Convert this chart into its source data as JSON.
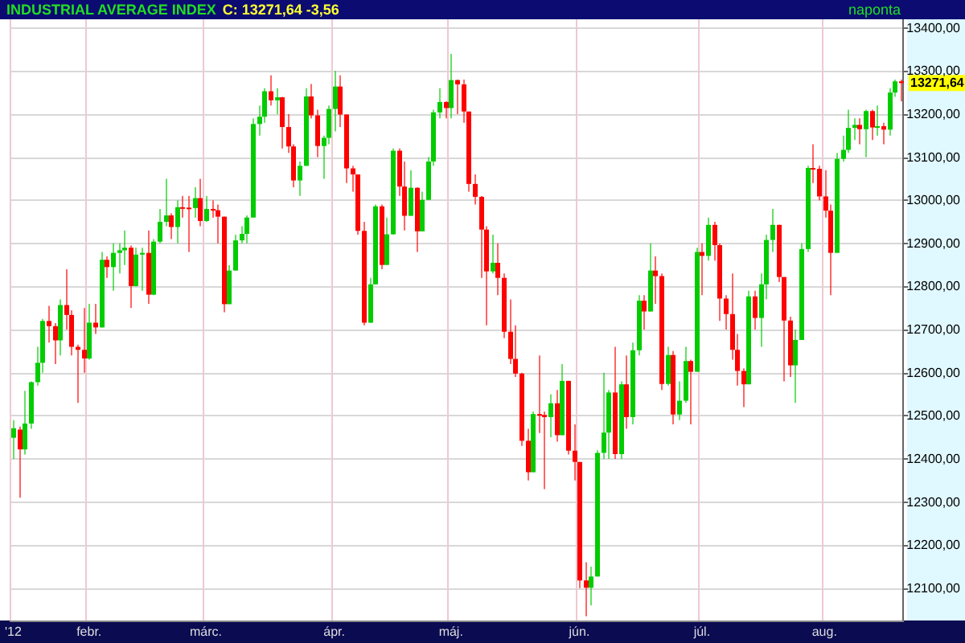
{
  "chart_data": {
    "type": "candlestick",
    "title": "INDUSTRIAL AVERAGE INDEX",
    "subtitle": "C: 13271,64  -3,56",
    "annotations": [
      "naponta",
      "13271,64"
    ],
    "categories": [
      "'12",
      null,
      null,
      null,
      null,
      null,
      null,
      null,
      null,
      null,
      null,
      null,
      null,
      "febr.",
      null,
      null,
      null,
      null,
      null,
      null,
      null,
      null,
      null,
      null,
      null,
      null,
      null,
      null,
      null,
      null,
      null,
      null,
      null,
      "márc.",
      null,
      null,
      null,
      null,
      null,
      null,
      null,
      null,
      null,
      null,
      null,
      null,
      null,
      null,
      null,
      null,
      null,
      null,
      null,
      null,
      null,
      "ápr.",
      null,
      null,
      null,
      null,
      null,
      null,
      null,
      null,
      null,
      null,
      null,
      null,
      null,
      null,
      null,
      null,
      null,
      null,
      null,
      "máj.",
      null,
      null,
      null,
      null,
      null,
      null,
      null,
      null,
      null,
      null,
      null,
      null,
      null,
      null,
      null,
      null,
      null,
      null,
      null,
      null,
      null,
      "jún.",
      null,
      null,
      null,
      null,
      null,
      null,
      null,
      null,
      null,
      null,
      null,
      null,
      null,
      null,
      null,
      null,
      null,
      null,
      null,
      null,
      "júl.",
      null,
      null,
      null,
      null,
      null,
      null,
      null,
      null,
      null,
      null,
      null,
      null,
      null,
      null,
      null,
      null,
      null,
      null,
      null,
      null,
      "aug.",
      null,
      null,
      null,
      null,
      null,
      null,
      null,
      null,
      null,
      null,
      null,
      null,
      null
    ],
    "ohlc": [
      [
        12449,
        12490,
        12400,
        12471
      ],
      [
        12468,
        12475,
        12310,
        12422
      ],
      [
        12422,
        12558,
        12410,
        12482
      ],
      [
        12482,
        12580,
        12470,
        12578
      ],
      [
        12578,
        12660,
        12570,
        12623
      ],
      [
        12623,
        12725,
        12600,
        12720
      ],
      [
        12720,
        12755,
        12670,
        12708
      ],
      [
        12708,
        12715,
        12620,
        12675
      ],
      [
        12675,
        12770,
        12640,
        12757
      ],
      [
        12757,
        12840,
        12700,
        12734
      ],
      [
        12734,
        12745,
        12640,
        12660
      ],
      [
        12660,
        12665,
        12530,
        12653
      ],
      [
        12653,
        12750,
        12600,
        12633
      ],
      [
        12633,
        12760,
        12630,
        12716
      ],
      [
        12716,
        12760,
        12690,
        12705
      ],
      [
        12705,
        12880,
        12705,
        12862
      ],
      [
        12862,
        12870,
        12820,
        12845
      ],
      [
        12845,
        12900,
        12790,
        12878
      ],
      [
        12878,
        12900,
        12830,
        12884
      ],
      [
        12884,
        12930,
        12850,
        12890
      ],
      [
        12890,
        12895,
        12750,
        12801
      ],
      [
        12801,
        12890,
        12800,
        12874
      ],
      [
        12874,
        12890,
        12790,
        12878
      ],
      [
        12878,
        12930,
        12760,
        12781
      ],
      [
        12781,
        12910,
        12780,
        12904
      ],
      [
        12904,
        12980,
        12900,
        12950
      ],
      [
        12950,
        13050,
        12940,
        12965
      ],
      [
        12965,
        12970,
        12910,
        12938
      ],
      [
        12938,
        13000,
        12900,
        12984
      ],
      [
        12984,
        13010,
        12960,
        12983
      ],
      [
        12983,
        13010,
        12880,
        12982
      ],
      [
        12982,
        13030,
        12960,
        13005
      ],
      [
        13005,
        13050,
        12940,
        12952
      ],
      [
        12952,
        13010,
        12950,
        12980
      ],
      [
        12980,
        13000,
        12960,
        12977
      ],
      [
        12977,
        12990,
        12900,
        12962
      ],
      [
        12962,
        12962,
        12740,
        12759
      ],
      [
        12759,
        12850,
        12759,
        12837
      ],
      [
        12837,
        12920,
        12837,
        12907
      ],
      [
        12907,
        12940,
        12900,
        12922
      ],
      [
        12922,
        12965,
        12900,
        12960
      ],
      [
        12960,
        13190,
        12960,
        13177
      ],
      [
        13177,
        13220,
        13150,
        13194
      ],
      [
        13194,
        13260,
        13180,
        13253
      ],
      [
        13253,
        13290,
        13220,
        13232
      ],
      [
        13232,
        13260,
        13200,
        13239
      ],
      [
        13239,
        13240,
        13120,
        13170
      ],
      [
        13170,
        13200,
        13110,
        13125
      ],
      [
        13125,
        13130,
        13030,
        13046
      ],
      [
        13046,
        13090,
        13010,
        13080
      ],
      [
        13080,
        13260,
        13080,
        13241
      ],
      [
        13241,
        13270,
        13190,
        13197
      ],
      [
        13197,
        13210,
        13100,
        13126
      ],
      [
        13126,
        13150,
        13050,
        13145
      ],
      [
        13145,
        13220,
        13130,
        13212
      ],
      [
        13212,
        13300,
        13160,
        13264
      ],
      [
        13264,
        13290,
        13170,
        13199
      ],
      [
        13199,
        13200,
        13040,
        13074
      ],
      [
        13074,
        13080,
        13020,
        13060
      ],
      [
        13060,
        13060,
        12920,
        12929
      ],
      [
        12929,
        12950,
        12710,
        12716
      ],
      [
        12716,
        12820,
        12716,
        12805
      ],
      [
        12805,
        12990,
        12805,
        12986
      ],
      [
        12986,
        12990,
        12840,
        12850
      ],
      [
        12850,
        12960,
        12850,
        12921
      ],
      [
        12921,
        13120,
        12921,
        13115
      ],
      [
        13115,
        13120,
        13010,
        13032
      ],
      [
        13032,
        13090,
        12930,
        12964
      ],
      [
        12964,
        13070,
        12964,
        13029
      ],
      [
        13029,
        13030,
        12880,
        12928
      ],
      [
        12928,
        13020,
        12928,
        13001
      ],
      [
        13001,
        13100,
        13001,
        13090
      ],
      [
        13090,
        13210,
        13080,
        13204
      ],
      [
        13204,
        13260,
        13190,
        13228
      ],
      [
        13228,
        13230,
        13190,
        13214
      ],
      [
        13214,
        13340,
        13190,
        13279
      ],
      [
        13279,
        13280,
        13200,
        13269
      ],
      [
        13269,
        13280,
        13180,
        13206
      ],
      [
        13206,
        13206,
        13020,
        13038
      ],
      [
        13038,
        13060,
        12990,
        13008
      ],
      [
        13008,
        13010,
        12820,
        12932
      ],
      [
        12932,
        12940,
        12710,
        12835
      ],
      [
        12835,
        12920,
        12830,
        12855
      ],
      [
        12855,
        12900,
        12780,
        12820
      ],
      [
        12820,
        12830,
        12680,
        12695
      ],
      [
        12695,
        12770,
        12620,
        12632
      ],
      [
        12632,
        12710,
        12590,
        12598
      ],
      [
        12598,
        12600,
        12430,
        12442
      ],
      [
        12442,
        12470,
        12350,
        12369
      ],
      [
        12369,
        12510,
        12369,
        12504
      ],
      [
        12504,
        12640,
        12460,
        12502
      ],
      [
        12502,
        12510,
        12330,
        12497
      ],
      [
        12497,
        12550,
        12450,
        12529
      ],
      [
        12529,
        12560,
        12440,
        12455
      ],
      [
        12455,
        12620,
        12455,
        12581
      ],
      [
        12581,
        12581,
        12410,
        12419
      ],
      [
        12419,
        12480,
        12350,
        12393
      ],
      [
        12393,
        12393,
        12100,
        12118
      ],
      [
        12118,
        12160,
        12035,
        12101
      ],
      [
        12101,
        12150,
        12060,
        12127
      ],
      [
        12127,
        12420,
        12127,
        12414
      ],
      [
        12414,
        12600,
        12400,
        12461
      ],
      [
        12461,
        12560,
        12400,
        12554
      ],
      [
        12554,
        12660,
        12400,
        12411
      ],
      [
        12411,
        12580,
        12400,
        12573
      ],
      [
        12573,
        12640,
        12470,
        12497
      ],
      [
        12497,
        12670,
        12480,
        12652
      ],
      [
        12652,
        12780,
        12640,
        12767
      ],
      [
        12767,
        12780,
        12700,
        12742
      ],
      [
        12742,
        12900,
        12742,
        12837
      ],
      [
        12837,
        12870,
        12760,
        12824
      ],
      [
        12824,
        12830,
        12560,
        12574
      ],
      [
        12574,
        12660,
        12570,
        12641
      ],
      [
        12641,
        12650,
        12480,
        12503
      ],
      [
        12503,
        12580,
        12490,
        12535
      ],
      [
        12535,
        12660,
        12530,
        12627
      ],
      [
        12627,
        12630,
        12480,
        12602
      ],
      [
        12602,
        12890,
        12602,
        12880
      ],
      [
        12880,
        12900,
        12780,
        12871
      ],
      [
        12871,
        12960,
        12860,
        12943
      ],
      [
        12943,
        12950,
        12860,
        12896
      ],
      [
        12896,
        12900,
        12720,
        12772
      ],
      [
        12772,
        12780,
        12700,
        12736
      ],
      [
        12736,
        12830,
        12630,
        12653
      ],
      [
        12653,
        12690,
        12570,
        12604
      ],
      [
        12604,
        12610,
        12520,
        12573
      ],
      [
        12573,
        12790,
        12573,
        12777
      ],
      [
        12777,
        12790,
        12700,
        12727
      ],
      [
        12727,
        12830,
        12660,
        12805
      ],
      [
        12805,
        12920,
        12770,
        12908
      ],
      [
        12908,
        12980,
        12880,
        12943
      ],
      [
        12943,
        12943,
        12810,
        12822
      ],
      [
        12822,
        12822,
        12580,
        12721
      ],
      [
        12721,
        12730,
        12590,
        12617
      ],
      [
        12617,
        12700,
        12530,
        12676
      ],
      [
        12676,
        12900,
        12676,
        12887
      ],
      [
        12887,
        13080,
        12880,
        13075
      ],
      [
        13075,
        13130,
        13040,
        13073
      ],
      [
        13073,
        13080,
        13000,
        13009
      ],
      [
        13009,
        13070,
        12960,
        12976
      ],
      [
        12976,
        12990,
        12780,
        12878
      ],
      [
        12878,
        13110,
        12878,
        13096
      ],
      [
        13096,
        13150,
        13090,
        13117
      ],
      [
        13117,
        13210,
        13110,
        13168
      ],
      [
        13168,
        13190,
        13140,
        13175
      ],
      [
        13175,
        13190,
        13130,
        13165
      ],
      [
        13165,
        13210,
        13100,
        13207
      ],
      [
        13207,
        13210,
        13140,
        13169
      ],
      [
        13169,
        13220,
        13150,
        13172
      ],
      [
        13172,
        13180,
        13130,
        13164
      ],
      [
        13164,
        13260,
        13150,
        13250
      ],
      [
        13250,
        13280,
        13240,
        13276
      ],
      [
        13276,
        13280,
        13230,
        13272
      ]
    ],
    "colors": [
      "#00cc00",
      "#ff0000",
      "#00cc00",
      "#00cc00",
      "#00cc00",
      "#00cc00",
      "#ff0000",
      "#ff0000",
      "#00cc00",
      "#ff0000",
      "#ff0000",
      "#ff0000",
      "#ff0000",
      "#00cc00",
      "#ff0000",
      "#00cc00",
      "#ff0000",
      "#00cc00",
      "#00cc00",
      "#00cc00",
      "#ff0000",
      "#00cc00",
      "#00cc00",
      "#ff0000",
      "#00cc00",
      "#00cc00",
      "#00cc00",
      "#ff0000",
      "#00cc00",
      "#ff0000",
      "#ff0000",
      "#00cc00",
      "#ff0000",
      "#00cc00",
      "#ff0000",
      "#ff0000",
      "#ff0000",
      "#00cc00",
      "#00cc00",
      "#00cc00",
      "#00cc00",
      "#00cc00",
      "#00cc00",
      "#00cc00",
      "#ff0000",
      "#00cc00",
      "#ff0000",
      "#ff0000",
      "#ff0000",
      "#00cc00",
      "#00cc00",
      "#ff0000",
      "#ff0000",
      "#00cc00",
      "#00cc00",
      "#00cc00",
      "#ff0000",
      "#ff0000",
      "#ff0000",
      "#ff0000",
      "#ff0000",
      "#00cc00",
      "#00cc00",
      "#ff0000",
      "#00cc00",
      "#00cc00",
      "#ff0000",
      "#ff0000",
      "#00cc00",
      "#ff0000",
      "#00cc00",
      "#00cc00",
      "#00cc00",
      "#00cc00",
      "#ff0000",
      "#00cc00",
      "#ff0000",
      "#ff0000",
      "#ff0000",
      "#ff0000",
      "#ff0000",
      "#ff0000",
      "#00cc00",
      "#ff0000",
      "#ff0000",
      "#ff0000",
      "#ff0000",
      "#ff0000",
      "#ff0000",
      "#00cc00",
      "#ff0000",
      "#ff0000",
      "#00cc00",
      "#ff0000",
      "#00cc00",
      "#ff0000",
      "#ff0000",
      "#ff0000",
      "#ff0000",
      "#00cc00",
      "#00cc00",
      "#00cc00",
      "#00cc00",
      "#ff0000",
      "#00cc00",
      "#ff0000",
      "#00cc00",
      "#00cc00",
      "#ff0000",
      "#00cc00",
      "#ff0000",
      "#ff0000",
      "#00cc00",
      "#ff0000",
      "#00cc00",
      "#00cc00",
      "#ff0000",
      "#00cc00",
      "#ff0000",
      "#00cc00",
      "#ff0000",
      "#ff0000",
      "#ff0000",
      "#ff0000",
      "#ff0000",
      "#ff0000",
      "#00cc00",
      "#ff0000",
      "#00cc00",
      "#00cc00",
      "#00cc00",
      "#ff0000",
      "#ff0000",
      "#ff0000",
      "#00cc00",
      "#00cc00",
      "#00cc00",
      "#ff0000",
      "#ff0000",
      "#ff0000",
      "#ff0000",
      "#00cc00",
      "#00cc00",
      "#00cc00",
      "#00cc00",
      "#ff0000",
      "#00cc00",
      "#ff0000",
      "#00cc00",
      "#ff0000",
      "#00cc00",
      "#00cc00",
      "#ff0000"
    ],
    "ylim": [
      12025,
      13420
    ],
    "yticks": [
      {
        "value": 12100,
        "label": "12100,00"
      },
      {
        "value": 12200,
        "label": "12200,00"
      },
      {
        "value": 12300,
        "label": "12300,00"
      },
      {
        "value": 12400,
        "label": "12400,00"
      },
      {
        "value": 12500,
        "label": "12500,00"
      },
      {
        "value": 12600,
        "label": "12600,00"
      },
      {
        "value": 12700,
        "label": "12700,00"
      },
      {
        "value": 12800,
        "label": "12800,00"
      },
      {
        "value": 12900,
        "label": "12900,00"
      },
      {
        "value": 13000,
        "label": "13000,00"
      },
      {
        "value": 13100,
        "label": "13100,00"
      },
      {
        "value": 13200,
        "label": "13200,00"
      },
      {
        "value": 13300,
        "label": "13300,00"
      },
      {
        "value": 13400,
        "label": "13400,00"
      }
    ],
    "grid": true
  }
}
